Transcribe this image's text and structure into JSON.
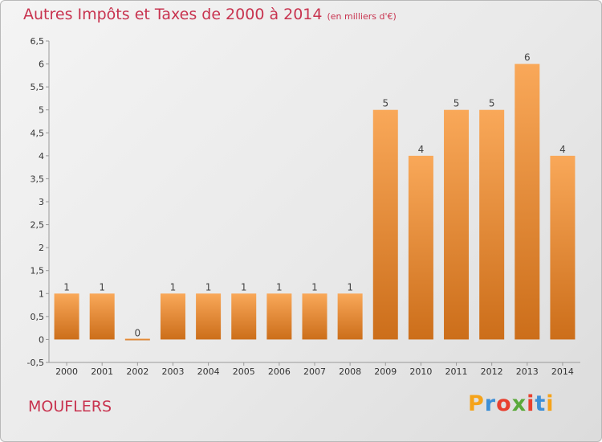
{
  "title": "Autres Impôts et Taxes de 2000 à 2014",
  "unit_note": "(en milliers d'€)",
  "place": "MOUFLERS",
  "logo": {
    "letters": [
      "P",
      "r",
      "o",
      "x",
      "i",
      "t",
      "i"
    ],
    "colors": [
      "#f5a31a",
      "#3d8fd6",
      "#e8402f",
      "#5aa93a",
      "#e8402f",
      "#3d8fd6",
      "#f5a31a"
    ]
  },
  "colors": {
    "title": "#c8334f",
    "bar_top": "#f9a859",
    "bar_bottom": "#cc6e1a"
  },
  "chart_data": {
    "type": "bar",
    "categories": [
      "2000",
      "2001",
      "2002",
      "2003",
      "2004",
      "2005",
      "2006",
      "2007",
      "2008",
      "2009",
      "2010",
      "2011",
      "2012",
      "2013",
      "2014"
    ],
    "values": [
      1,
      1,
      0,
      1,
      1,
      1,
      1,
      1,
      1,
      5,
      4,
      5,
      5,
      6,
      4
    ],
    "ylim": [
      -0.5,
      6.5
    ],
    "yticks": [
      "-0,5",
      "0",
      "0,5",
      "1",
      "1,5",
      "2",
      "2,5",
      "3",
      "3,5",
      "4",
      "4,5",
      "5",
      "5,5",
      "6",
      "6,5"
    ],
    "grid": false,
    "legend": "none",
    "xlabel": "",
    "ylabel": ""
  }
}
